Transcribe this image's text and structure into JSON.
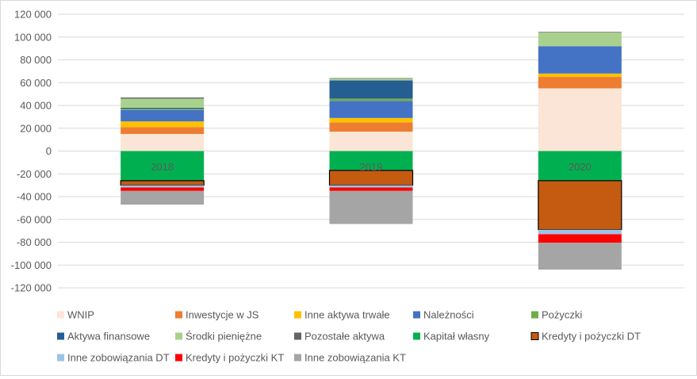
{
  "chart_data": {
    "type": "bar",
    "stacked": true,
    "title": "",
    "xlabel": "",
    "ylabel": "",
    "ylim": [
      -120000,
      120000
    ],
    "ytick_step": 20000,
    "yticks": [
      "120 000",
      "100 000",
      "80 000",
      "60 000",
      "40 000",
      "20 000",
      "0",
      "-20 000",
      "-40 000",
      "-60 000",
      "-80 000",
      "-100 000",
      "-120 000"
    ],
    "grid": true,
    "legend_position": "bottom",
    "categories": [
      "2018",
      "2019",
      "2020"
    ],
    "series": [
      {
        "name": "WNIP",
        "color": "#fbe5d6",
        "values": [
          15000,
          17000,
          55000
        ]
      },
      {
        "name": "Inwestycje w JS",
        "color": "#ed7d31",
        "values": [
          6000,
          8000,
          10000
        ]
      },
      {
        "name": "Inne aktywa trwałe",
        "color": "#ffc000",
        "values": [
          5000,
          4000,
          3000
        ]
      },
      {
        "name": "Należności",
        "color": "#4472c4",
        "values": [
          10000,
          15000,
          24000
        ]
      },
      {
        "name": "Pożyczki",
        "color": "#70ad47",
        "values": [
          1000,
          2000,
          0
        ]
      },
      {
        "name": "Aktywa finansowe",
        "color": "#255e91",
        "values": [
          1000,
          16000,
          0
        ]
      },
      {
        "name": "Środki pieniężne",
        "color": "#a9d18e",
        "values": [
          8000,
          1500,
          12000
        ]
      },
      {
        "name": "Pozostałe aktywa",
        "color": "#636363",
        "values": [
          1000,
          500,
          500
        ]
      },
      {
        "name": "Kapitał własny",
        "color": "#00b050",
        "values": [
          -26000,
          -17000,
          -26000
        ]
      },
      {
        "name": "Kredyty i pożyczki DT",
        "color": "#c55a11",
        "outlined": true,
        "values": [
          -4000,
          -13000,
          -43000
        ]
      },
      {
        "name": "Inne zobowiązania DT",
        "color": "#9dc3e6",
        "values": [
          -2000,
          -2000,
          -4000
        ]
      },
      {
        "name": "Kredyty i pożyczki KT",
        "color": "#ff0000",
        "values": [
          -3000,
          -3000,
          -7500
        ]
      },
      {
        "name": "Inne zobowiązania KT",
        "color": "#a5a5a5",
        "values": [
          -12000,
          -29000,
          -23500
        ]
      }
    ]
  }
}
